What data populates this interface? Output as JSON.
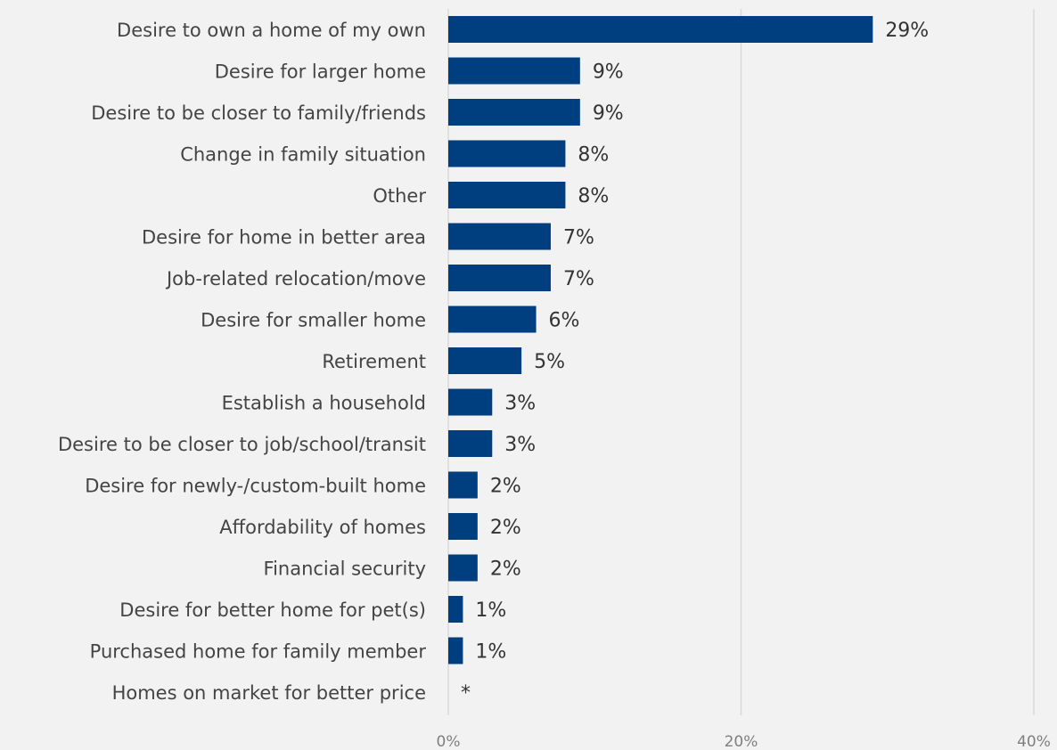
{
  "chart_data": {
    "type": "bar",
    "orientation": "horizontal",
    "categories": [
      "Desire to own a home of my own",
      "Desire for larger home",
      "Desire to be closer to family/friends",
      "Change in family situation",
      "Other",
      "Desire for home in better area",
      "Job-related relocation/move",
      "Desire for smaller home",
      "Retirement",
      "Establish a household",
      "Desire to be closer to job/school/transit",
      "Desire for newly-/custom-built home",
      "Affordability of homes",
      "Financial security",
      "Desire for better home for pet(s)",
      "Purchased home for family member",
      "Homes on market for better price"
    ],
    "values": [
      29,
      9,
      9,
      8,
      8,
      7,
      7,
      6,
      5,
      3,
      3,
      2,
      2,
      2,
      1,
      1,
      0
    ],
    "data_labels": [
      "29%",
      "9%",
      "9%",
      "8%",
      "8%",
      "7%",
      "7%",
      "6%",
      "5%",
      "3%",
      "3%",
      "2%",
      "2%",
      "2%",
      "1%",
      "1%",
      "*"
    ],
    "xlim": [
      0,
      40
    ],
    "x_ticks": [
      "0%",
      "20%",
      "40%"
    ],
    "grid": true,
    "legend": "none",
    "colors": {
      "bar": "#003f7f",
      "grid": "#d9d9d9",
      "background": "#f2f2f2"
    }
  }
}
